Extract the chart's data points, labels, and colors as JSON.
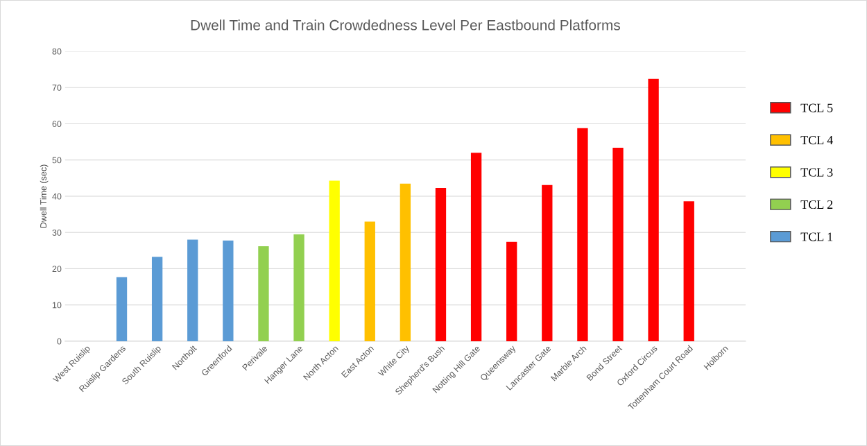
{
  "chart_data": {
    "type": "bar",
    "title": "Dwell Time and Train Crowdedness Level Per Eastbound Platforms",
    "ylabel": "Dwell Time (sec)",
    "categories": [
      "West Ruislip",
      "Ruislip Gardens",
      "South Ruislip",
      "Northolt",
      "Greenford",
      "Perivale",
      "Hanger Lane",
      "North Acton",
      "East Acton",
      "White City",
      "Shepherd's Bush",
      "Notting Hill Gate",
      "Queensway",
      "Lancaster Gate",
      "Marble Arch",
      "Bond Street",
      "Oxford Circus",
      "Tottenham Court Road",
      "Holborn"
    ],
    "stacked": true,
    "series": [
      {
        "name": "TCL 5",
        "color": "#ff0000",
        "values": [
          null,
          null,
          null,
          null,
          null,
          null,
          null,
          null,
          null,
          null,
          42.3,
          52.0,
          27.4,
          43.1,
          58.8,
          53.4,
          72.4,
          38.6,
          null
        ]
      },
      {
        "name": "TCL 4",
        "color": "#ffc000",
        "values": [
          null,
          null,
          null,
          null,
          null,
          null,
          null,
          null,
          33.0,
          43.5,
          null,
          null,
          null,
          null,
          null,
          null,
          null,
          null,
          null
        ]
      },
      {
        "name": "TCL 3",
        "color": "#ffff00",
        "values": [
          null,
          null,
          null,
          null,
          null,
          null,
          null,
          44.3,
          null,
          null,
          null,
          null,
          null,
          null,
          null,
          null,
          null,
          null,
          null
        ]
      },
      {
        "name": "TCL 2",
        "color": "#92d050",
        "values": [
          null,
          null,
          null,
          null,
          null,
          26.2,
          29.5,
          null,
          null,
          null,
          null,
          null,
          null,
          null,
          null,
          null,
          null,
          null,
          null
        ]
      },
      {
        "name": "TCL 1",
        "color": "#5b9bd5",
        "values": [
          null,
          17.7,
          23.3,
          28.0,
          27.8,
          null,
          null,
          null,
          null,
          null,
          null,
          null,
          null,
          null,
          null,
          null,
          null,
          null,
          null
        ]
      }
    ],
    "ylim": [
      0,
      80
    ],
    "yticks": [
      0,
      10,
      20,
      30,
      40,
      50,
      60,
      70,
      80
    ],
    "grid": "y",
    "legend": "right"
  }
}
